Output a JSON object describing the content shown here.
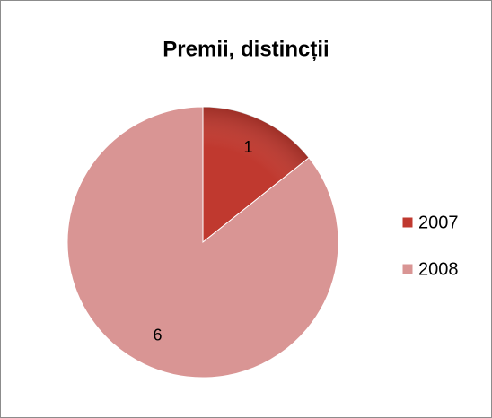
{
  "chart_data": {
    "type": "pie",
    "title": "Premii, distincții",
    "categories": [
      "2007",
      "2008"
    ],
    "values": [
      1,
      6
    ],
    "colors": [
      "#c0392f",
      "#d99594"
    ],
    "legend": "right"
  }
}
